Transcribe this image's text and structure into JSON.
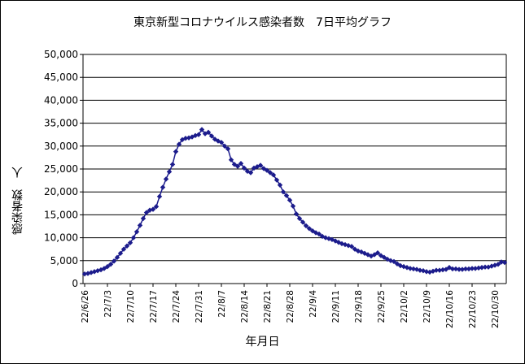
{
  "chart_data": {
    "type": "line",
    "title": "東京新型コロナウイルス感染者数　7日平均グラフ",
    "xlabel": "年月日",
    "ylabel": "感染者数　人",
    "ylim": [
      0,
      50000
    ],
    "y_ticks": [
      "0",
      "5,000",
      "10,000",
      "15,000",
      "20,000",
      "25,000",
      "30,000",
      "35,000",
      "40,000",
      "45,000",
      "50,000"
    ],
    "x_tick_labels": [
      "22/6/26",
      "22/7/3",
      "22/7/10",
      "22/7/17",
      "22/7/24",
      "22/7/31",
      "22/8/7",
      "22/8/14",
      "22/8/21",
      "22/8/28",
      "22/9/4",
      "22/9/11",
      "22/9/18",
      "22/9/25",
      "22/10/2",
      "22/10/9",
      "22/10/16",
      "22/10/23",
      "22/10/30"
    ],
    "x_start_date": "22/6/26",
    "grid": true,
    "marker": "diamond",
    "series_color": "#1c1c8c",
    "values": [
      2100,
      2200,
      2400,
      2600,
      2800,
      3000,
      3300,
      3700,
      4200,
      4900,
      5700,
      6600,
      7500,
      8200,
      8900,
      10000,
      11300,
      12700,
      14200,
      15500,
      16000,
      16200,
      16800,
      19000,
      21000,
      22800,
      24400,
      26000,
      28800,
      30400,
      31400,
      31700,
      31800,
      32000,
      32300,
      32500,
      33600,
      32700,
      33000,
      32200,
      31500,
      31100,
      30800,
      30000,
      29400,
      27000,
      26000,
      25600,
      26200,
      25200,
      24500,
      24200,
      25200,
      25500,
      25800,
      25100,
      24700,
      24200,
      23700,
      22600,
      21500,
      20000,
      19200,
      18200,
      16900,
      15200,
      14200,
      13400,
      12600,
      12000,
      11500,
      11100,
      10800,
      10300,
      10000,
      9800,
      9600,
      9300,
      9000,
      8700,
      8500,
      8300,
      8100,
      7500,
      7100,
      6900,
      6600,
      6300,
      6000,
      6300,
      6700,
      6100,
      5700,
      5300,
      5000,
      4800,
      4300,
      3900,
      3700,
      3500,
      3300,
      3200,
      3100,
      2900,
      2800,
      2600,
      2500,
      2700,
      2900,
      2900,
      3000,
      3100,
      3500,
      3200,
      3200,
      3100,
      3100,
      3200,
      3200,
      3300,
      3300,
      3400,
      3500,
      3600,
      3600,
      3800,
      4000,
      4200,
      4700,
      4600
    ]
  }
}
